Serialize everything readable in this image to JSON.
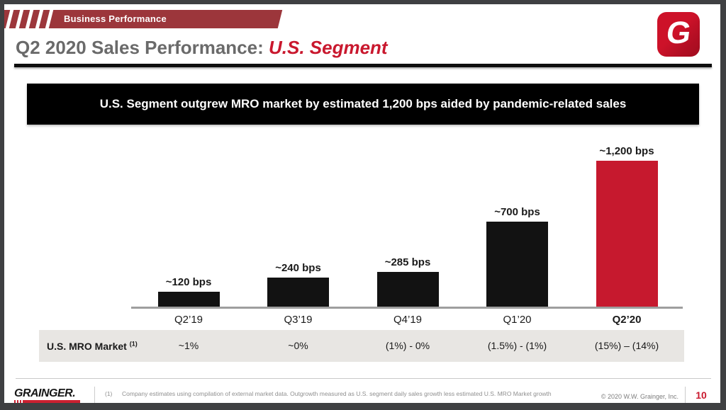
{
  "header": {
    "kicker": "Business Performance",
    "title_main": "Q2 2020 Sales Performance: ",
    "title_accent": "U.S. Segment",
    "logo_letter": "G"
  },
  "headline": "U.S. Segment outgrew MRO market by estimated 1,200 bps aided by pandemic-related sales",
  "chart_data": {
    "type": "bar",
    "title": "U.S. Segment outgrew MRO market by estimated 1,200 bps aided by pandemic-related sales",
    "categories": [
      "Q2’19",
      "Q3’19",
      "Q4’19",
      "Q1’20",
      "Q2’20"
    ],
    "values": [
      120,
      240,
      285,
      700,
      1200
    ],
    "value_labels": [
      "~120 bps",
      "~240 bps",
      "~285 bps",
      "~700 bps",
      "~1,200 bps"
    ],
    "unit": "bps",
    "bar_colors": [
      "#121212",
      "#121212",
      "#121212",
      "#121212",
      "#c6192e"
    ],
    "highlight_index": 4,
    "xlabel": "",
    "ylabel": "",
    "ylim": [
      0,
      1260
    ],
    "grid": false,
    "legend": null
  },
  "market_row": {
    "label": "U.S. MRO Market",
    "footnote_ref": "(1)",
    "values": [
      "~1%",
      "~0%",
      "(1%) - 0%",
      "(1.5%) - (1%)",
      "(15%) – (14%)"
    ]
  },
  "footer": {
    "logo_text": "GRAINGER.",
    "footnote_ref": "(1)",
    "footnote": "Company estimates using compilation of external market data. Outgrowth measured as U.S. segment daily sales growth less estimated U.S. MRO Market growth",
    "copyright": "© 2020 W.W. Grainger, Inc.",
    "page_number": "10"
  },
  "colors": {
    "accent_red": "#c9182e",
    "kicker_maroon": "#9c363b",
    "bar_black": "#121212",
    "bar_red": "#c6192e",
    "row_bg": "#e8e6e3",
    "title_gray": "#6a6a6a"
  }
}
